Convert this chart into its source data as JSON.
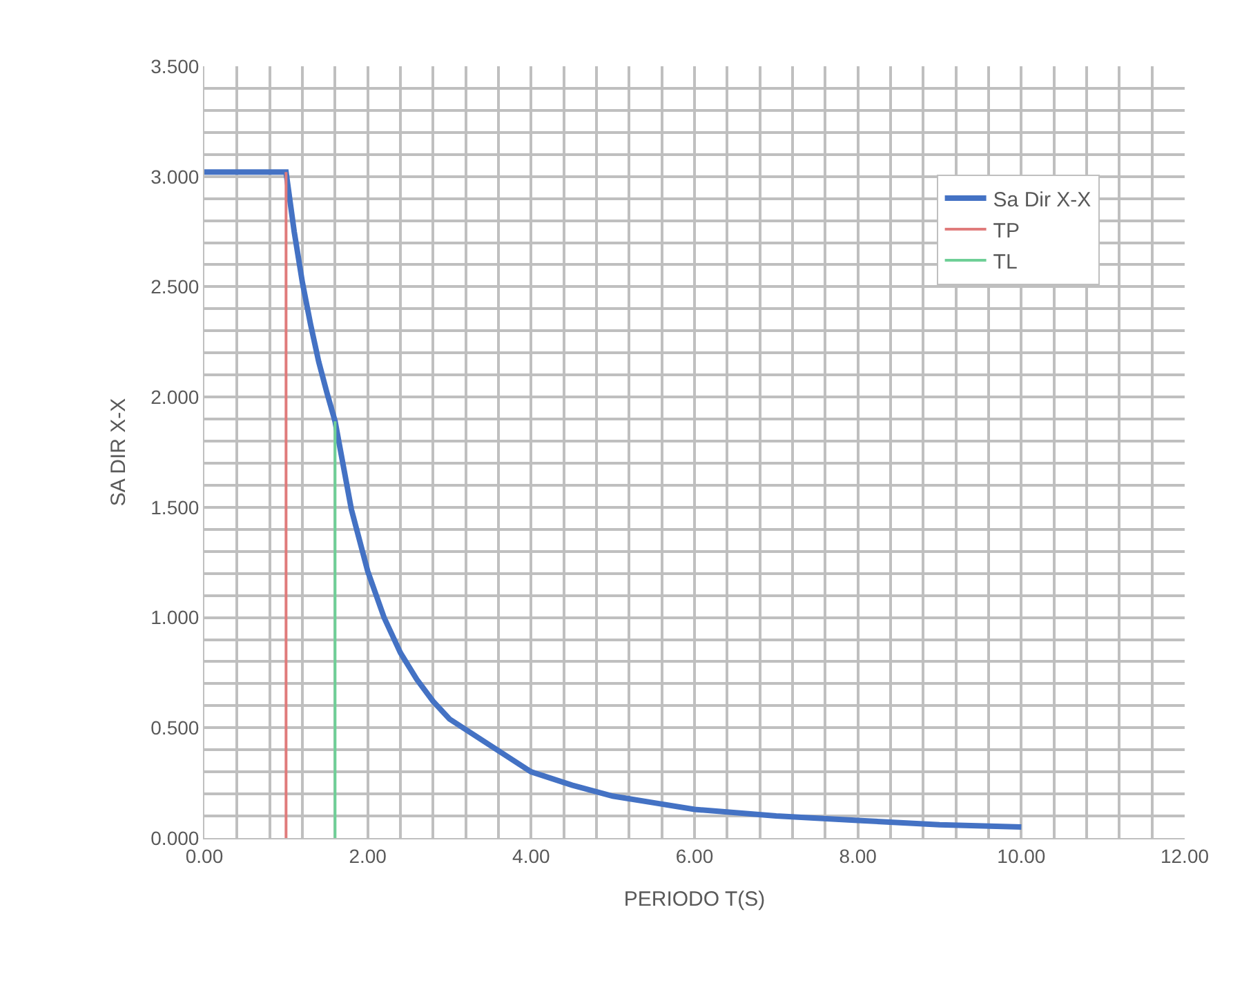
{
  "chart_data": {
    "type": "line",
    "xlabel": "PERIODO T(S)",
    "ylabel": "SA DIR X-X",
    "xlim": [
      0,
      12
    ],
    "xticks": [
      {
        "value": 0,
        "label": "0.00"
      },
      {
        "value": 2,
        "label": "2.00"
      },
      {
        "value": 4,
        "label": "4.00"
      },
      {
        "value": 6,
        "label": "6.00"
      },
      {
        "value": 8,
        "label": "8.00"
      },
      {
        "value": 10,
        "label": "10.00"
      },
      {
        "value": 12,
        "label": "12.00"
      }
    ],
    "ylim": [
      0,
      3.5
    ],
    "yticks": [
      {
        "value": 0,
        "label": "0.000"
      },
      {
        "value": 0.5,
        "label": "0.500"
      },
      {
        "value": 1,
        "label": "1.000"
      },
      {
        "value": 1.5,
        "label": "1.500"
      },
      {
        "value": 2,
        "label": "2.000"
      },
      {
        "value": 2.5,
        "label": "2.500"
      },
      {
        "value": 3,
        "label": "3.000"
      },
      {
        "value": 3.5,
        "label": "3.500"
      }
    ],
    "grid": true,
    "legend": "top right",
    "marker": "none",
    "line_style": "solid",
    "series": [
      {
        "name": "Sa Dir X-X",
        "color": "#4472c4",
        "x": [
          0,
          0.5,
          1.0,
          1.1,
          1.2,
          1.3,
          1.4,
          1.5,
          1.6,
          1.8,
          2.0,
          2.2,
          2.4,
          2.6,
          2.8,
          3.0,
          4.0,
          4.5,
          5.0,
          5.5,
          6.0,
          7.0,
          8.0,
          9.0,
          10.0
        ],
        "values": [
          3.02,
          3.02,
          3.02,
          2.75,
          2.52,
          2.33,
          2.16,
          2.02,
          1.89,
          1.49,
          1.21,
          1.0,
          0.84,
          0.72,
          0.62,
          0.54,
          0.3,
          0.24,
          0.19,
          0.16,
          0.13,
          0.1,
          0.08,
          0.06,
          0.05
        ]
      },
      {
        "name": "TP",
        "color": "#e07b7b",
        "x": [
          1.0,
          1.0
        ],
        "values": [
          0,
          3.02
        ]
      },
      {
        "name": "TL",
        "color": "#6fcf97",
        "x": [
          1.6,
          1.6
        ],
        "values": [
          0,
          1.89
        ]
      }
    ]
  }
}
